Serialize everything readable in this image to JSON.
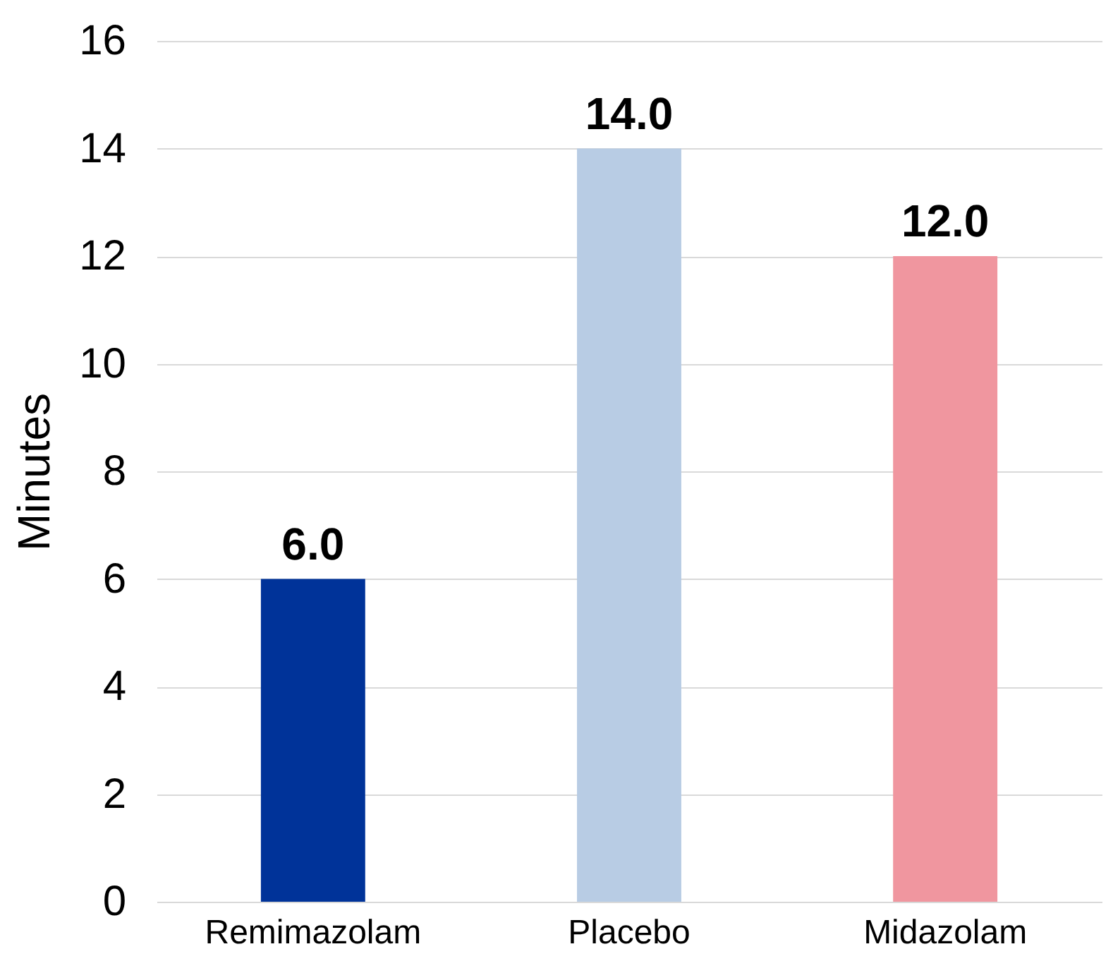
{
  "chart_data": {
    "type": "bar",
    "ylabel": "Minutes",
    "categories": [
      "Remimazolam",
      "Placebo",
      "Midazolam"
    ],
    "values": [
      6.0,
      14.0,
      12.0
    ],
    "colors": [
      "#003399",
      "#b8cce4",
      "#f0969f"
    ],
    "value_labels": [
      "6.0",
      "14.0",
      "12.0"
    ],
    "ylim": [
      0,
      16
    ],
    "yticks": [
      0,
      2,
      4,
      6,
      8,
      10,
      12,
      14,
      16
    ],
    "grid": "y"
  }
}
